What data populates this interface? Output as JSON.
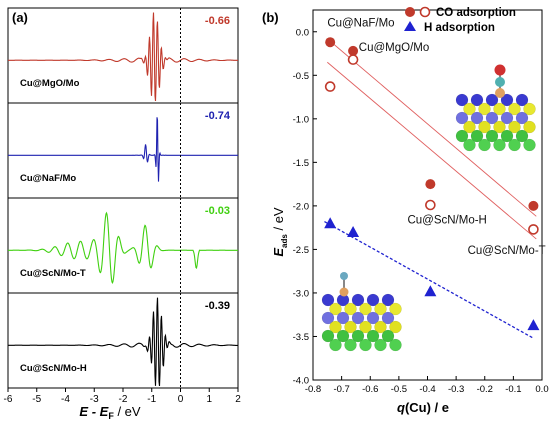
{
  "panel_a": {
    "label": "(a)",
    "xlabel": "E - E",
    "xlabel_sub": "F",
    "xlabel_unit": " / eV",
    "xlim": [
      -6,
      2
    ],
    "x_ticks": [
      -6,
      -5,
      -4,
      -3,
      -2,
      -1,
      0,
      1,
      2
    ],
    "dashed_line_x": 0,
    "subplots": [
      {
        "name": "Cu@MgO/Mo",
        "value": "-0.66",
        "color": "#c0392b",
        "peak_center": -0.9,
        "pattern": "sharp-multiple"
      },
      {
        "name": "Cu@NaF/Mo",
        "value": "-0.74",
        "color": "#1f22b0",
        "peak_center": -0.8,
        "pattern": "sharp-single"
      },
      {
        "name": "Cu@ScN/Mo-T",
        "value": "-0.03",
        "color": "#40d010",
        "peak_center": -2.5,
        "pattern": "broad"
      },
      {
        "name": "Cu@ScN/Mo-H",
        "value": "-0.39",
        "color": "#000000",
        "peak_center": -0.8,
        "pattern": "sharp-multiple"
      }
    ]
  },
  "chart_data": {
    "type": "scatter",
    "panel_label": "(b)",
    "xlabel": "q(Cu) / e",
    "ylabel": "E",
    "ylabel_sub": "ads",
    "ylabel_unit": " / eV",
    "xlim": [
      -0.8,
      0.0
    ],
    "ylim": [
      -4.0,
      0.25
    ],
    "x_ticks": [
      -0.8,
      -0.7,
      -0.6,
      -0.5,
      -0.4,
      -0.3,
      -0.2,
      -0.1,
      0.0
    ],
    "y_ticks": [
      0.0,
      -0.5,
      -1.0,
      -1.5,
      -2.0,
      -2.5,
      -3.0,
      -3.5,
      -4.0
    ],
    "legend": [
      "CO adsorption",
      "H adsorption"
    ],
    "legend_position": "top-right",
    "series": [
      {
        "name": "CO adsorption",
        "marker": "filled-circle",
        "color": "#c0392b",
        "points": [
          {
            "x": -0.74,
            "y": -0.12
          },
          {
            "x": -0.66,
            "y": -0.22
          },
          {
            "x": -0.39,
            "y": -1.75
          },
          {
            "x": -0.03,
            "y": -2.0
          }
        ]
      },
      {
        "name": "CO adsorption",
        "marker": "open-circle",
        "color": "#c0392b",
        "points": [
          {
            "x": -0.74,
            "y": -0.63
          },
          {
            "x": -0.66,
            "y": -0.32
          },
          {
            "x": -0.39,
            "y": -1.99
          },
          {
            "x": -0.03,
            "y": -2.27
          }
        ]
      },
      {
        "name": "H adsorption",
        "marker": "triangle",
        "color": "#1f22d0",
        "points": [
          {
            "x": -0.74,
            "y": -2.2
          },
          {
            "x": -0.66,
            "y": -2.3
          },
          {
            "x": -0.39,
            "y": -2.98
          },
          {
            "x": -0.03,
            "y": -3.37
          }
        ]
      }
    ],
    "fit_lines": [
      {
        "style": "solid",
        "color": "#e06060",
        "from": {
          "x": -0.75,
          "y": -0.08
        },
        "to": {
          "x": -0.02,
          "y": -2.12
        }
      },
      {
        "style": "solid",
        "color": "#e06060",
        "from": {
          "x": -0.75,
          "y": -0.35
        },
        "to": {
          "x": -0.02,
          "y": -2.38
        }
      },
      {
        "style": "dotted",
        "color": "#1f22d0",
        "from": {
          "x": -0.76,
          "y": -2.18
        },
        "to": {
          "x": -0.03,
          "y": -3.52
        }
      }
    ],
    "annotations": [
      {
        "text": "Cu@NaF/Mo",
        "x": -0.75,
        "y": 0.06
      },
      {
        "text": "Cu@MgO/Mo",
        "x": -0.64,
        "y": -0.22
      },
      {
        "text": "Cu@ScN/Mo-H",
        "x": -0.47,
        "y": -2.2
      },
      {
        "text": "Cu@ScN/Mo-T",
        "x": -0.26,
        "y": -2.55
      }
    ]
  }
}
